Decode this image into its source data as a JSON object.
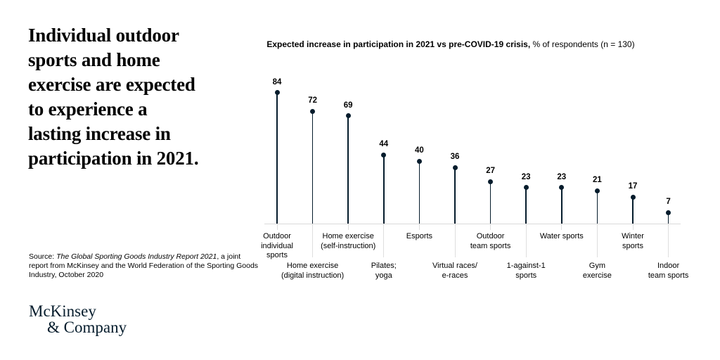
{
  "headline": "Individual outdoor\nsports and home\nexercise are expected\nto experience a\nlasting increase in\nparticipation in 2021.",
  "chart": {
    "title_bold": "Expected increase in participation in 2021 vs pre-COVID-19 crisis,",
    "title_regular": " % of respondents (n = 130)"
  },
  "chart_data": {
    "type": "bar",
    "style": "lollipop",
    "title": "Expected increase in participation in 2021 vs pre-COVID-19 crisis",
    "subtitle": "% of respondents (n = 130)",
    "unit": "% of respondents",
    "n": 130,
    "categories": [
      "Outdoor individual sports",
      "Home exercise (digital instruction)",
      "Home exercise (self-instruction)",
      "Pilates; yoga",
      "Esports",
      "Virtual races/e-races",
      "Outdoor team sports",
      "1-against-1 sports",
      "Water sports",
      "Gym exercise",
      "Winter sports",
      "Indoor team sports"
    ],
    "display_labels": [
      "Outdoor\nindividual\nsports",
      "Home exercise\n(digital instruction)",
      "Home exercise\n(self-instruction)",
      "Pilates;\nyoga",
      "Esports",
      "Virtual races/\ne-races",
      "Outdoor\nteam sports",
      "1-against-1\nsports",
      "Water sports",
      "Gym\nexercise",
      "Winter\nsports",
      "Indoor\nteam sports"
    ],
    "values": [
      84,
      72,
      69,
      44,
      40,
      36,
      27,
      23,
      23,
      21,
      17,
      7
    ],
    "ylim": [
      0,
      90
    ],
    "grid": false,
    "legend": false,
    "label_layout": "staggered-two-rows"
  },
  "source": {
    "prefix": "Source: ",
    "italic": "The Global Sporting Goods Industry Report 2021",
    "suffix": ", a joint report from McKinsey and the World Federation of the Sporting Goods Industry, October 2020"
  },
  "logo": {
    "line1": "McKinsey",
    "line2": "& Company"
  },
  "colors": {
    "navy": "#051c2c",
    "axis": "#d9d9d9",
    "tick": "#dedede"
  }
}
